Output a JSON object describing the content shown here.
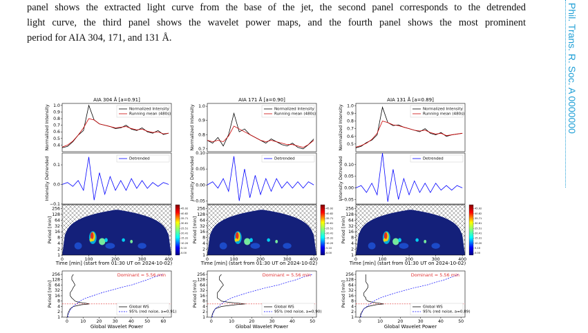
{
  "caption": {
    "lines": [
      "panel shows the extracted light curve from the base of the jet, the second panel corresponds to the detrended",
      "light curve, the third panel shows the wavelet power maps, and the fourth panel shows the most prominent",
      "period for AIA 304, 171, and 131 Å."
    ]
  },
  "journal": "Phil. Trans. R. Soc. A 0000000",
  "figure": {
    "x_time": [
      0,
      20,
      40,
      60,
      80,
      100,
      120,
      140,
      160,
      180,
      200,
      220,
      240,
      260,
      280,
      300,
      320,
      340,
      360,
      380,
      400
    ],
    "time_lim": [
      0,
      410
    ],
    "time_ticks": [
      0,
      100,
      200,
      300,
      400
    ],
    "time_label": "Time [min] (start from 01:30 UT on 2024-10-02)",
    "period_lim": [
      1,
      400
    ],
    "period_ticks": [
      1,
      2,
      4,
      8,
      16,
      32,
      64,
      128,
      256
    ],
    "periods": [
      1,
      1.5,
      2,
      3,
      4,
      5,
      5.56,
      6,
      7,
      8,
      10,
      12,
      16,
      24,
      32,
      48,
      64,
      96,
      128,
      192,
      256
    ],
    "colorbar_lim": [
      -2,
      50
    ],
    "colorbar_ticks": [
      45.92,
      40.82,
      35.71,
      30.61,
      25.51,
      20.41,
      15.31,
      {
        "value": 10.2,
        "label": "10.20"
      },
      {
        "value": 5.1,
        "label": "5.10"
      },
      {
        "value": 0,
        "label": "0.00"
      }
    ],
    "columns": [
      {
        "title": "AIA 304 Å  [a=0.91]",
        "intensity": {
          "ylabel": "Normalized Intensity",
          "ylim": [
            0.3,
            1.03
          ],
          "yticks": [
            0.4,
            0.5,
            0.6,
            0.7,
            0.8,
            0.9,
            {
              "value": 1,
              "label": "1.0"
            }
          ],
          "legend": "upper right",
          "series": [
            {
              "name": "Normalized Intensity",
              "color": "#000000",
              "values": [
                0.36,
                0.38,
                0.45,
                0.55,
                0.62,
                1.0,
                0.78,
                0.72,
                0.7,
                0.68,
                0.65,
                0.66,
                0.7,
                0.64,
                0.62,
                0.66,
                0.6,
                0.58,
                0.62,
                0.56,
                0.58
              ]
            },
            {
              "name": "Running mean (480s)",
              "color": "#cc0000",
              "values": [
                0.37,
                0.4,
                0.46,
                0.55,
                0.66,
                0.8,
                0.78,
                0.72,
                0.7,
                0.68,
                0.66,
                0.67,
                0.68,
                0.65,
                0.63,
                0.64,
                0.61,
                0.59,
                0.6,
                0.57,
                0.58
              ]
            }
          ]
        },
        "detrended": {
          "ylabel": "Intensity Detrended",
          "ylim": [
            -0.1,
            0.16
          ],
          "yticks": [
            {
              "value": -0.1,
              "label": "−0.1"
            },
            {
              "value": 0,
              "label": "0.0"
            },
            0.1
          ],
          "legend": "upper right",
          "series": [
            {
              "name": "Detrended",
              "color": "#0000ff",
              "values": [
                0,
                0.01,
                -0.01,
                0.02,
                -0.03,
                0.14,
                -0.08,
                0.06,
                -0.05,
                0.04,
                -0.03,
                0.02,
                -0.03,
                0.03,
                -0.02,
                0.02,
                -0.02,
                0.01,
                -0.01,
                0.01,
                0
              ]
            }
          ]
        },
        "wavelet": {
          "ylabel": "Period [min]"
        },
        "global": {
          "ylabel": "Period [min]",
          "xlabel": "Global Wavelet Power",
          "xlim": [
            -3,
            65
          ],
          "xticks": [
            0,
            10,
            20,
            30,
            40,
            50,
            60
          ],
          "legend": "lower right",
          "dominant": {
            "value": 5.56,
            "label": "Dominant = 5.56 min"
          },
          "series": [
            {
              "name": "Global WS",
              "color": "#000000",
              "linestyle": "solid",
              "values": [
                0.2,
                0.5,
                1,
                2,
                4,
                9,
                14,
                12,
                7,
                5,
                4,
                3,
                2,
                2,
                3,
                4,
                5,
                4,
                3,
                3,
                4
              ]
            },
            {
              "name": "95% (red noise, a=0.91)",
              "color": "#0000ff",
              "linestyle": "dashed",
              "values": [
                0.5,
                0.8,
                1.5,
                2.5,
                4,
                5,
                6,
                6.5,
                7,
                8,
                10,
                12,
                16,
                22,
                27,
                34,
                40,
                46,
                50,
                55,
                60
              ]
            }
          ]
        }
      },
      {
        "title": "AIA 171 Å  [a=0.90]",
        "intensity": {
          "ylabel": "Normalized Intensity",
          "ylim": [
            0.68,
            1.02
          ],
          "yticks": [
            0.7,
            0.8,
            0.9,
            {
              "value": 1,
              "label": "1.0"
            }
          ],
          "legend": "upper right",
          "series": [
            {
              "name": "Normalized Intensity",
              "color": "#000000",
              "values": [
                0.76,
                0.74,
                0.78,
                0.72,
                0.8,
                0.95,
                0.82,
                0.84,
                0.8,
                0.78,
                0.76,
                0.74,
                0.77,
                0.75,
                0.73,
                0.72,
                0.74,
                0.71,
                0.7,
                0.73,
                0.77
              ]
            },
            {
              "name": "Running mean (480s)",
              "color": "#cc0000",
              "values": [
                0.76,
                0.75,
                0.76,
                0.75,
                0.79,
                0.86,
                0.84,
                0.82,
                0.8,
                0.78,
                0.76,
                0.75,
                0.76,
                0.75,
                0.74,
                0.73,
                0.73,
                0.72,
                0.71,
                0.73,
                0.76
              ]
            }
          ]
        },
        "detrended": {
          "ylabel": "Intensity Detrended",
          "ylim": [
            -0.06,
            0.1
          ],
          "yticks": [
            {
              "value": -0.05,
              "label": "−0.05"
            },
            {
              "value": 0,
              "label": "0.00"
            },
            0.05,
            {
              "value": 0.1,
              "label": "0.10"
            }
          ],
          "legend": "upper right",
          "series": [
            {
              "name": "Detrended",
              "color": "#0000ff",
              "values": [
                0,
                0.01,
                -0.01,
                0.02,
                -0.02,
                0.09,
                -0.05,
                0.05,
                -0.04,
                0.03,
                -0.03,
                0.02,
                -0.02,
                0.02,
                -0.01,
                0.01,
                -0.01,
                0.01,
                -0.01,
                0.01,
                0
              ]
            }
          ]
        },
        "wavelet": {
          "ylabel": "Period [min]"
        },
        "global": {
          "ylabel": "Period [min]",
          "xlabel": "Global Wavelet Power",
          "xlim": [
            -2,
            52
          ],
          "xticks": [
            0,
            10,
            20,
            30,
            40,
            50
          ],
          "legend": "lower right",
          "dominant": {
            "value": 5.56,
            "label": "Dominant = 5.56 min"
          },
          "series": [
            {
              "name": "Global WS",
              "color": "#000000",
              "linestyle": "solid",
              "values": [
                0.2,
                0.5,
                1,
                2,
                5,
                12,
                17,
                14,
                8,
                5,
                4,
                3,
                3,
                3,
                4,
                5,
                6,
                5,
                4,
                4,
                5
              ]
            },
            {
              "name": "95% (red noise, a=0.90)",
              "color": "#0000ff",
              "linestyle": "dashed",
              "values": [
                0.4,
                0.7,
                1.2,
                2,
                3.5,
                4.5,
                5,
                5.5,
                6,
                7,
                8.5,
                10,
                13,
                18,
                22,
                28,
                33,
                38,
                42,
                46,
                50
              ]
            }
          ]
        }
      },
      {
        "title": "AIA 131 Å  [a=0.89]",
        "intensity": {
          "ylabel": "Normalized Intensity",
          "ylim": [
            0.4,
            1.03
          ],
          "yticks": [
            0.5,
            0.6,
            0.7,
            0.8,
            0.9,
            {
              "value": 1,
              "label": "1.0"
            }
          ],
          "legend": "upper right",
          "series": [
            {
              "name": "Normalized Intensity",
              "color": "#000000",
              "values": [
                0.45,
                0.47,
                0.52,
                0.55,
                0.62,
                0.98,
                0.78,
                0.74,
                0.75,
                0.72,
                0.7,
                0.68,
                0.66,
                0.7,
                0.64,
                0.62,
                0.65,
                0.6,
                0.62,
                0.63,
                0.64
              ]
            },
            {
              "name": "Running mean (480s)",
              "color": "#cc0000",
              "values": [
                0.46,
                0.48,
                0.51,
                0.56,
                0.64,
                0.8,
                0.78,
                0.75,
                0.74,
                0.72,
                0.7,
                0.68,
                0.67,
                0.68,
                0.65,
                0.63,
                0.64,
                0.61,
                0.62,
                0.63,
                0.64
              ]
            }
          ]
        },
        "detrended": {
          "ylabel": "Intensity Detrended",
          "ylim": [
            -0.07,
            0.15
          ],
          "yticks": [
            {
              "value": -0.05,
              "label": "−0.05"
            },
            {
              "value": 0,
              "label": "0.00"
            },
            0.05,
            {
              "value": 0.1,
              "label": "0.10"
            }
          ],
          "legend": "upper right",
          "series": [
            {
              "name": "Detrended",
              "color": "#0000ff",
              "values": [
                0,
                0.01,
                -0.02,
                0.02,
                -0.03,
                0.15,
                -0.06,
                0.08,
                -0.05,
                0.04,
                -0.03,
                0.03,
                -0.02,
                0.02,
                -0.02,
                0.02,
                -0.01,
                0.01,
                -0.01,
                0.01,
                0
              ]
            }
          ]
        },
        "wavelet": {
          "ylabel": "Period [min]"
        },
        "global": {
          "ylabel": "Period [min]",
          "xlabel": "Global Wavelet Power",
          "xlim": [
            -2,
            52
          ],
          "xticks": [
            0,
            10,
            20,
            30,
            40,
            50
          ],
          "legend": "lower right",
          "dominant": {
            "value": 5.56,
            "label": "Dominant = 5.56 min"
          },
          "series": [
            {
              "name": "Global WS",
              "color": "#000000",
              "linestyle": "solid",
              "values": [
                0.2,
                0.4,
                1,
                2,
                4,
                8,
                12,
                10,
                6,
                4,
                3,
                3,
                2,
                2,
                3,
                4,
                4,
                3,
                3,
                3,
                3
              ]
            },
            {
              "name": "95% (red noise, a=0.89)",
              "color": "#0000ff",
              "linestyle": "dashed",
              "values": [
                0.4,
                0.7,
                1.2,
                2,
                3.5,
                4.5,
                5,
                5.5,
                6,
                7,
                8.5,
                10,
                13,
                18,
                22,
                28,
                33,
                38,
                42,
                46,
                49
              ]
            }
          ]
        }
      }
    ]
  }
}
